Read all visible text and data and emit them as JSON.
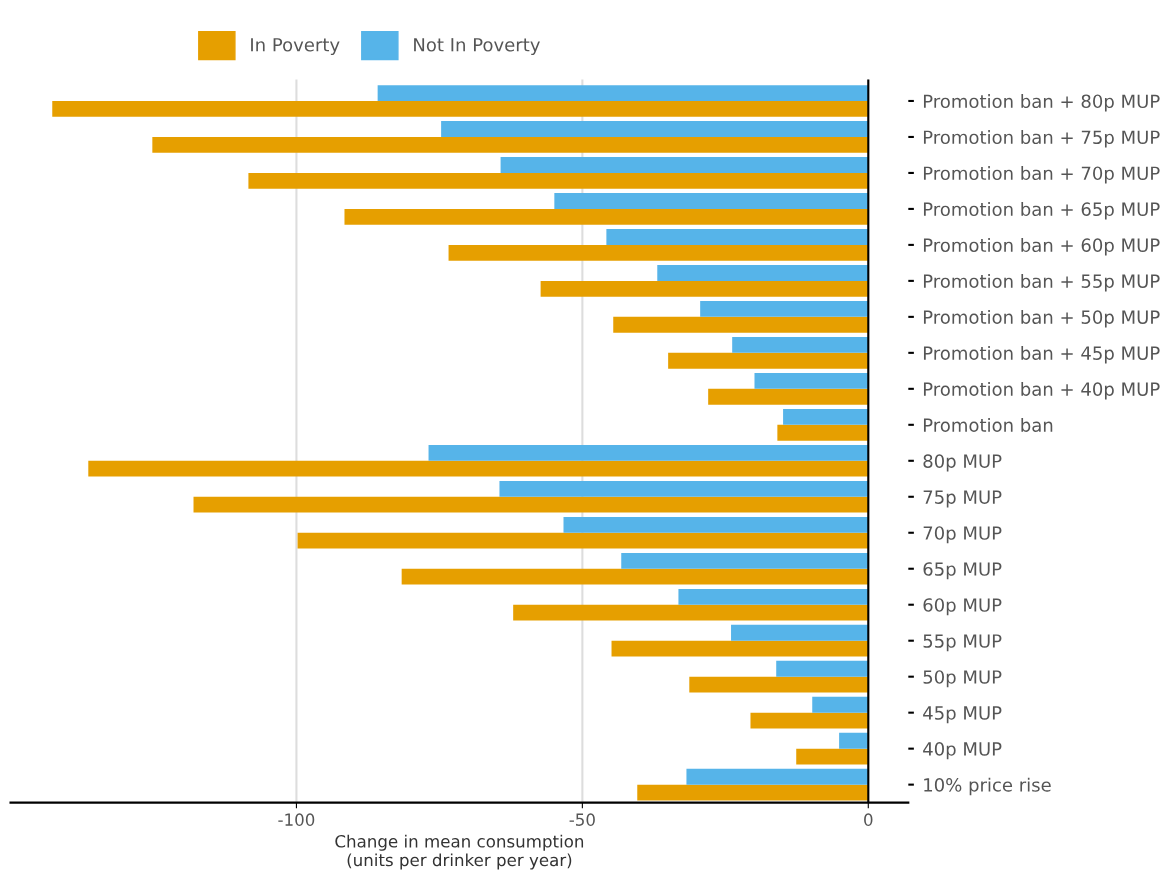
{
  "chart_data": {
    "type": "bar",
    "orientation": "horizontal",
    "categories": [
      "Promotion ban + 80p MUP",
      "Promotion ban + 75p MUP",
      "Promotion ban + 70p MUP",
      "Promotion ban + 65p MUP",
      "Promotion ban + 60p MUP",
      "Promotion ban + 55p MUP",
      "Promotion ban + 50p MUP",
      "Promotion ban + 45p MUP",
      "Promotion ban + 40p MUP",
      "Promotion ban",
      "80p MUP",
      "75p MUP",
      "70p MUP",
      "65p MUP",
      "60p MUP",
      "55p MUP",
      "50p MUP",
      "45p MUP",
      "40p MUP",
      "10% price rise"
    ],
    "series": [
      {
        "name": "In Poverty",
        "color": "#e69f00",
        "values": [
          -142.7,
          -125.2,
          -108.4,
          -91.6,
          -73.4,
          -57.3,
          -44.6,
          -35.0,
          -28.0,
          -15.9,
          -136.4,
          -118.0,
          -99.8,
          -81.6,
          -62.1,
          -44.9,
          -31.3,
          -20.6,
          -12.6,
          -40.4
        ]
      },
      {
        "name": "Not In Poverty",
        "color": "#56b4e9",
        "values": [
          -85.8,
          -74.7,
          -64.3,
          -54.9,
          -45.8,
          -36.9,
          -29.4,
          -23.8,
          -19.9,
          -14.9,
          -76.9,
          -64.5,
          -53.3,
          -43.2,
          -33.2,
          -24.0,
          -16.1,
          -9.8,
          -5.1,
          -31.8
        ]
      }
    ],
    "xlim": [
      -150,
      7
    ],
    "xticks": [
      -100,
      -50,
      0
    ],
    "xlabel": "Change in mean consumption\n(units per drinker per year)",
    "ref_lines": [
      {
        "axis": "x",
        "value": 0,
        "color": "#000000"
      }
    ],
    "grid": "x",
    "legend": "top"
  }
}
